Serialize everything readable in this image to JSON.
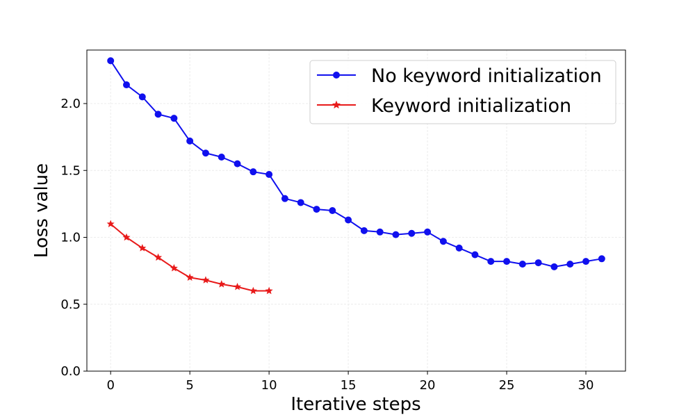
{
  "chart_data": {
    "type": "line",
    "xlabel": "Iterative steps",
    "ylabel": "Loss value",
    "xlim": [
      -1.5,
      32.5
    ],
    "ylim": [
      0,
      2.4
    ],
    "xticks": [
      0,
      5,
      10,
      15,
      20,
      25,
      30
    ],
    "yticks": [
      0.0,
      0.5,
      1.0,
      1.5,
      2.0
    ],
    "xtick_labels": [
      "0",
      "5",
      "10",
      "15",
      "20",
      "25",
      "30"
    ],
    "ytick_labels": [
      "0.0",
      "0.5",
      "1.0",
      "1.5",
      "2.0"
    ],
    "grid": true,
    "legend_position": "top-right",
    "series": [
      {
        "name": "No keyword initialization",
        "color": "#1010ee",
        "marker": "circle",
        "x": [
          0,
          1,
          2,
          3,
          4,
          5,
          6,
          7,
          8,
          9,
          10,
          11,
          12,
          13,
          14,
          15,
          16,
          17,
          18,
          19,
          20,
          21,
          22,
          23,
          24,
          25,
          26,
          27,
          28,
          29,
          30,
          31
        ],
        "y": [
          2.32,
          2.14,
          2.05,
          1.92,
          1.89,
          1.72,
          1.63,
          1.6,
          1.55,
          1.49,
          1.47,
          1.29,
          1.26,
          1.21,
          1.2,
          1.13,
          1.05,
          1.04,
          1.02,
          1.03,
          1.04,
          0.97,
          0.92,
          0.87,
          0.82,
          0.82,
          0.8,
          0.81,
          0.78,
          0.8,
          0.82,
          0.84
        ]
      },
      {
        "name": "Keyword initialization",
        "color": "#e81a1a",
        "marker": "star",
        "x": [
          0,
          1,
          2,
          3,
          4,
          5,
          6,
          7,
          8,
          9,
          10
        ],
        "y": [
          1.1,
          1.0,
          0.92,
          0.85,
          0.77,
          0.7,
          0.68,
          0.65,
          0.63,
          0.6,
          0.6
        ]
      }
    ]
  }
}
